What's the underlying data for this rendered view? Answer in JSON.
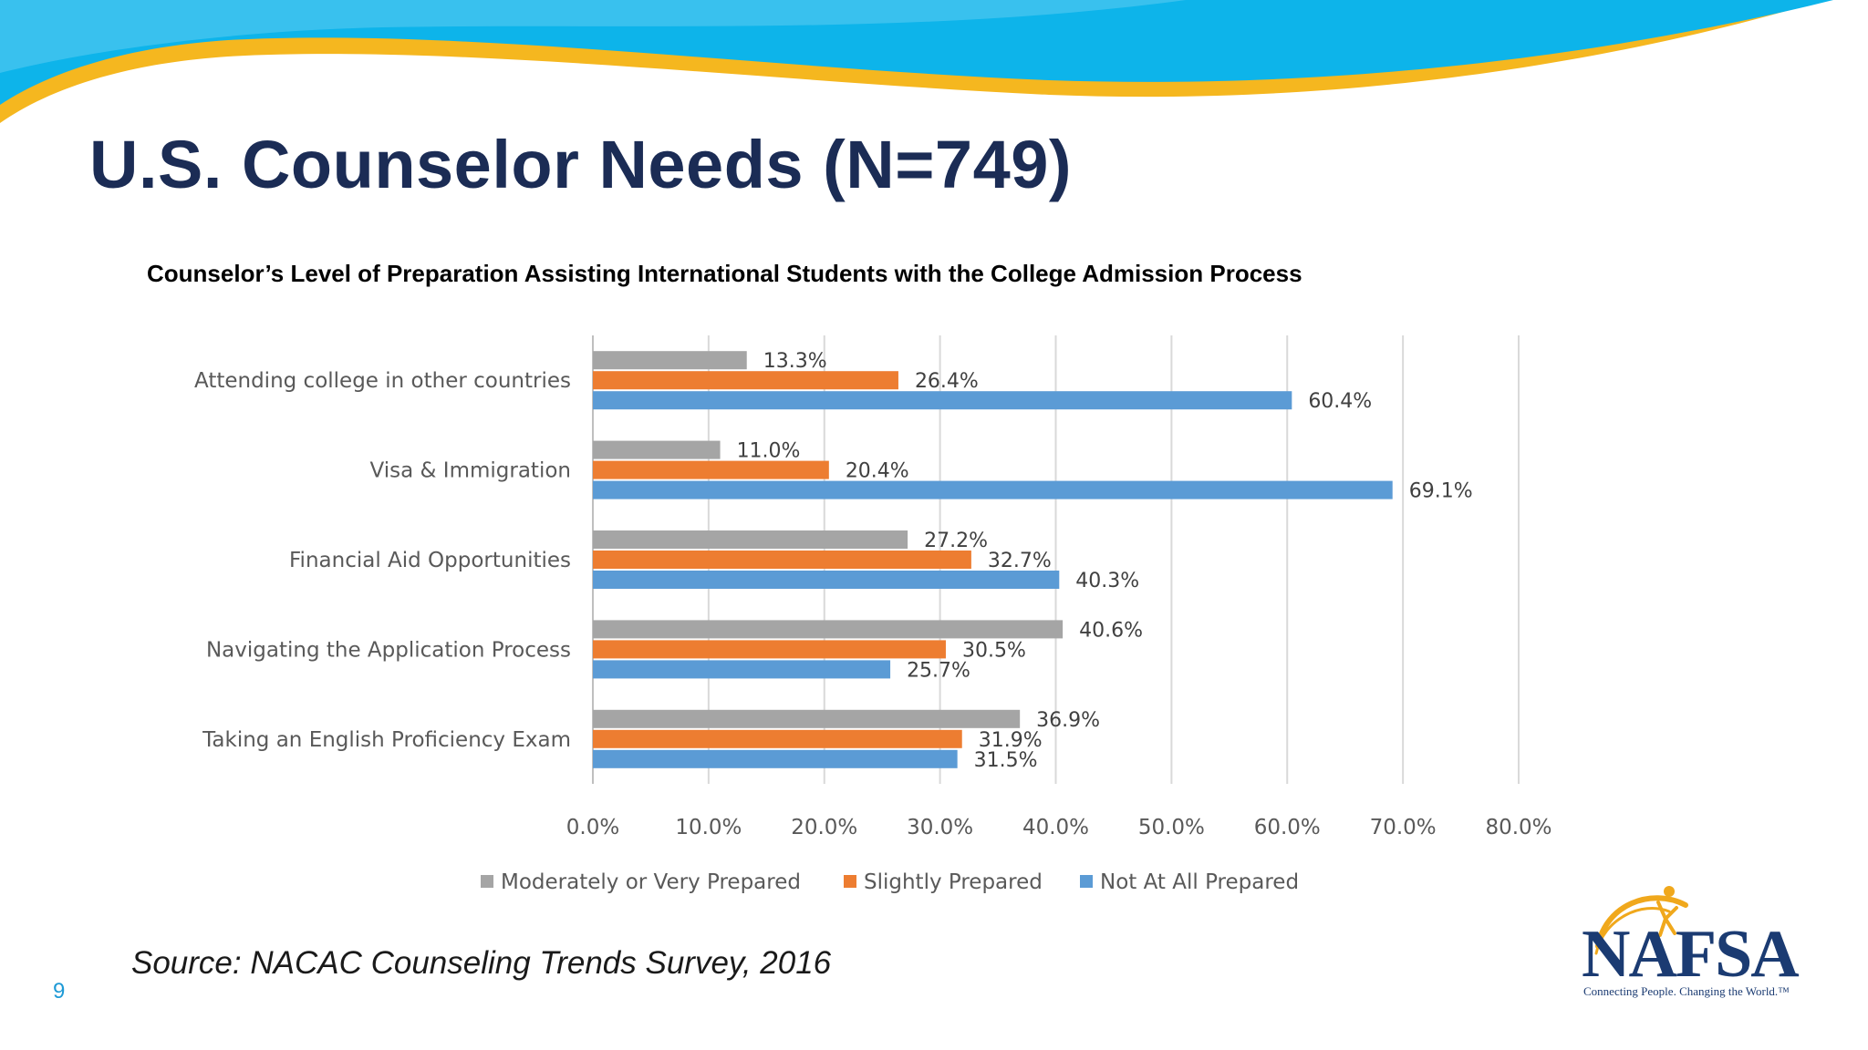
{
  "slide": {
    "title": "U.S. Counselor Needs (N=749)",
    "source": "Source: NACAC Counseling Trends Survey, 2016",
    "page_number": "9",
    "logo_text": "NAFSA",
    "logo_tagline": "Connecting People. Changing the World.™"
  },
  "colors": {
    "title": "#1b2c55",
    "banner_blue": "#0db4ea",
    "banner_light": "#6fd0f3",
    "banner_gold": "#f5b71f",
    "page_number": "#1e9ad6"
  },
  "chart_data": {
    "type": "bar",
    "orientation": "horizontal",
    "title": "Counselor’s Level of Preparation Assisting International Students with the College Admission Process",
    "categories": [
      "Attending college in other countries",
      "Visa & Immigration",
      "Financial Aid Opportunities",
      "Navigating the Application Process",
      "Taking an English Proficiency Exam"
    ],
    "series": [
      {
        "name": "Moderately or Very Prepared",
        "color": "#a5a5a5",
        "values": [
          13.3,
          11.0,
          27.2,
          40.6,
          36.9
        ]
      },
      {
        "name": "Slightly Prepared",
        "color": "#ed7d31",
        "values": [
          26.4,
          20.4,
          32.7,
          30.5,
          31.9
        ]
      },
      {
        "name": "Not At All Prepared",
        "color": "#5b9bd5",
        "values": [
          60.4,
          69.1,
          40.3,
          25.7,
          31.5
        ]
      }
    ],
    "value_format": "percent_1dp",
    "xlim": [
      0,
      80
    ],
    "xticks": [
      "0.0%",
      "10.0%",
      "20.0%",
      "30.0%",
      "40.0%",
      "50.0%",
      "60.0%",
      "70.0%",
      "80.0%"
    ],
    "grid": true,
    "legend_position": "bottom"
  }
}
